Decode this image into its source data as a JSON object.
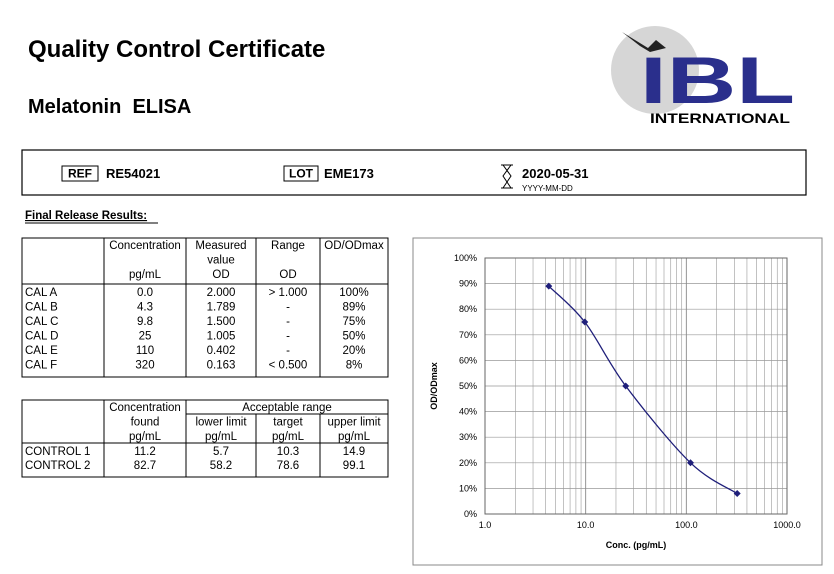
{
  "header": {
    "title": "Quality Control Certificate",
    "subtitle": "Melatonin  ELISA",
    "logo": "IBL",
    "logo_sub": "INTERNATIONAL"
  },
  "info": {
    "ref_label": "REF",
    "ref": "RE54021",
    "lot_label": "LOT",
    "lot": "EME173",
    "expiry": "2020-05-31",
    "expiry_format": "YYYY-MM-DD"
  },
  "section_title": "Final Release Results:",
  "cal_table": {
    "header": [
      [
        "Concentration",
        "pg/mL"
      ],
      [
        "Measured",
        "value",
        "OD"
      ],
      [
        "Range",
        "OD"
      ],
      [
        "OD/ODmax"
      ]
    ],
    "rows": [
      [
        "CAL A",
        "0.0",
        "2.000",
        "> 1.000",
        "100%"
      ],
      [
        "CAL B",
        "4.3",
        "1.789",
        "-",
        "89%"
      ],
      [
        "CAL C",
        "9.8",
        "1.500",
        "-",
        "75%"
      ],
      [
        "CAL D",
        "25",
        "1.005",
        "-",
        "50%"
      ],
      [
        "CAL E",
        "110",
        "0.402",
        "-",
        "20%"
      ],
      [
        "CAL F",
        "320",
        "0.163",
        "< 0.500",
        "8%"
      ]
    ]
  },
  "control_table": {
    "header": [
      [
        "Concentration",
        "found",
        "pg/mL"
      ],
      [
        "lower limit",
        "pg/mL"
      ],
      [
        "target",
        "pg/mL"
      ],
      [
        "upper limit",
        "pg/mL"
      ]
    ],
    "span_header": "Acceptable range",
    "rows": [
      [
        "CONTROL 1",
        "11.2",
        "5.7",
        "10.3",
        "14.9"
      ],
      [
        "CONTROL 2",
        "82.7",
        "58.2",
        "78.6",
        "99.1"
      ]
    ]
  },
  "chart_data": {
    "type": "line",
    "x_label": "Conc. (pg/mL)",
    "y_label": "OD/ODmax",
    "x": [
      4.3,
      9.8,
      25,
      110,
      320
    ],
    "values": [
      89,
      75,
      50,
      20,
      8
    ],
    "color": "#1f1f7a",
    "xscale": "log",
    "xlim": [
      1,
      1000
    ],
    "xticks": [
      {
        "value": 1,
        "label": "1.0"
      },
      {
        "value": 10,
        "label": "10.0"
      },
      {
        "value": 100,
        "label": "100.0"
      },
      {
        "value": 1000,
        "label": "1000.0"
      }
    ],
    "ylim": [
      0,
      100
    ],
    "yticks": [
      {
        "value": 0,
        "label": "0%"
      },
      {
        "value": 10,
        "label": "10%"
      },
      {
        "value": 20,
        "label": "20%"
      },
      {
        "value": 30,
        "label": "30%"
      },
      {
        "value": 40,
        "label": "40%"
      },
      {
        "value": 50,
        "label": "50%"
      },
      {
        "value": 60,
        "label": "60%"
      },
      {
        "value": 70,
        "label": "70%"
      },
      {
        "value": 80,
        "label": "80%"
      },
      {
        "value": 90,
        "label": "90%"
      },
      {
        "value": 100,
        "label": "100%"
      }
    ],
    "grid": true
  }
}
